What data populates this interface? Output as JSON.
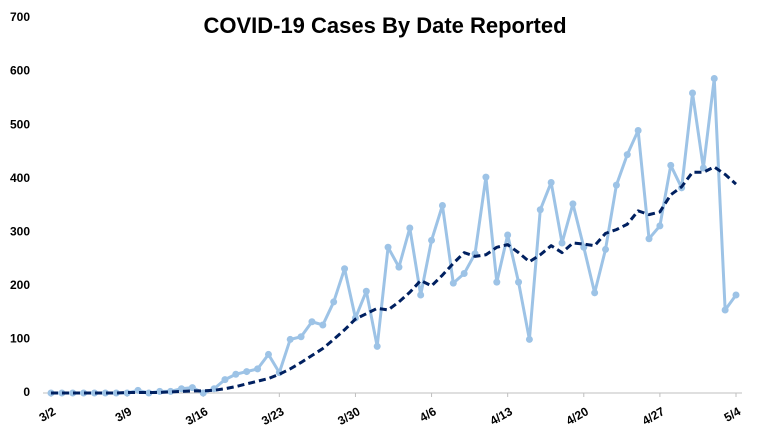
{
  "chart_data": {
    "type": "line",
    "title": "COVID-19 Cases By Date Reported",
    "categories": [
      "3/2",
      null,
      null,
      null,
      null,
      null,
      null,
      "3/9",
      null,
      null,
      null,
      null,
      null,
      null,
      "3/16",
      null,
      null,
      null,
      null,
      null,
      null,
      "3/23",
      null,
      null,
      null,
      null,
      null,
      null,
      "3/30",
      null,
      null,
      null,
      null,
      null,
      null,
      "4/6",
      null,
      null,
      null,
      null,
      null,
      null,
      "4/13",
      null,
      null,
      null,
      null,
      null,
      null,
      "4/20",
      null,
      null,
      null,
      null,
      null,
      null,
      "4/27",
      null,
      null,
      null,
      null,
      null,
      null,
      "5/4"
    ],
    "series": [
      {
        "color": "#9dc3e6",
        "markers": true,
        "dashed": false,
        "values": [
          0,
          0,
          0,
          0,
          0,
          0,
          0,
          0,
          5,
          0,
          3,
          3,
          8,
          10,
          0,
          8,
          25,
          35,
          40,
          45,
          72,
          38,
          100,
          105,
          133,
          127,
          170,
          232,
          140,
          190,
          87,
          272,
          235,
          308,
          183,
          285,
          350,
          205,
          223,
          260,
          403,
          207,
          295,
          207,
          100,
          342,
          393,
          280,
          353,
          272,
          187,
          268,
          388,
          445,
          490,
          288,
          312,
          425,
          383,
          560,
          420,
          587,
          155,
          183
        ]
      },
      {
        "color": "#002060",
        "markers": false,
        "dashed": true,
        "values": [
          0,
          0,
          0,
          0,
          0,
          0,
          0,
          1,
          1,
          1,
          1,
          2,
          3,
          4,
          4,
          5,
          8,
          12,
          17,
          22,
          27,
          35,
          45,
          57,
          70,
          83,
          100,
          118,
          138,
          148,
          158,
          155,
          170,
          188,
          210,
          200,
          220,
          242,
          262,
          255,
          258,
          272,
          277,
          262,
          245,
          258,
          275,
          262,
          280,
          278,
          275,
          298,
          305,
          315,
          340,
          333,
          338,
          370,
          385,
          412,
          412,
          422,
          408,
          390
        ]
      }
    ],
    "ylim": [
      0,
      700
    ],
    "yticks": [
      0,
      100,
      200,
      300,
      400,
      500,
      600,
      700
    ],
    "grid": false
  }
}
